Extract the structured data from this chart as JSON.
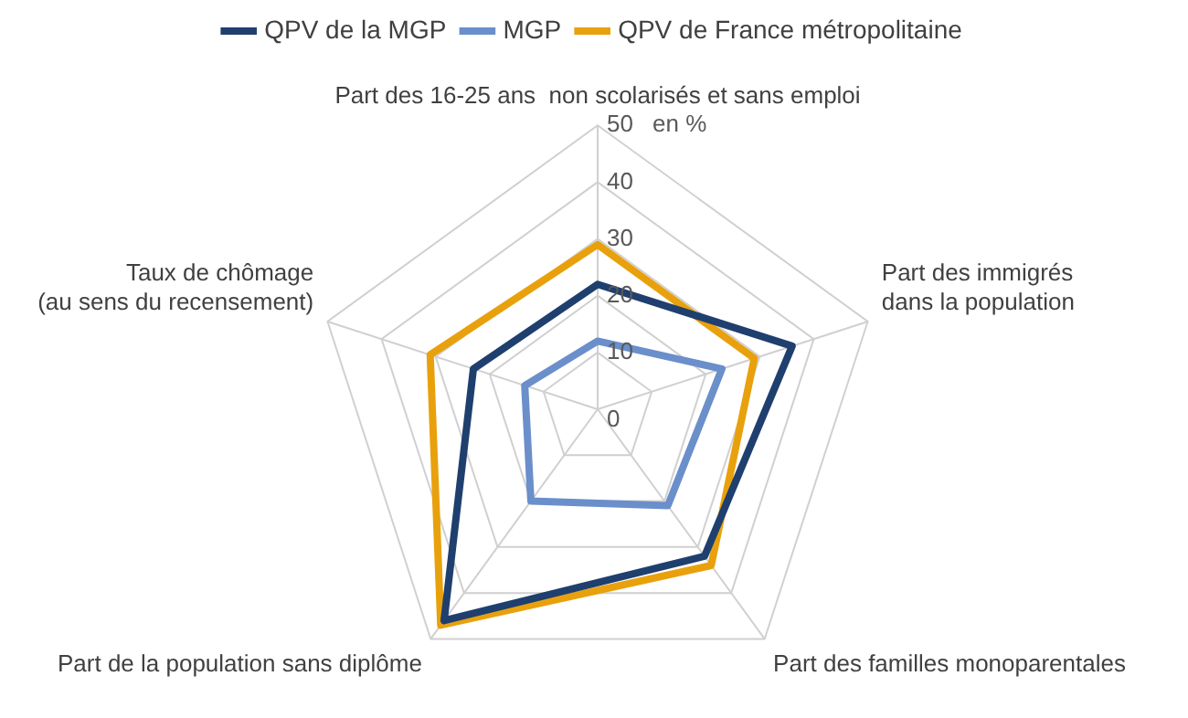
{
  "chart_data": {
    "type": "radar",
    "categories": [
      "Part des 16-25 ans  non scolarisés et sans emploi",
      "Part des immigrés\ndans la population",
      "Part des familles monoparentales",
      "Part de la population sans diplôme",
      "Taux de chômage\n(au sens du recensement)"
    ],
    "series": [
      {
        "name": "QPV de la MGP",
        "color": "#1f3f6e",
        "values": [
          22,
          36,
          32,
          46,
          23
        ]
      },
      {
        "name": "MGP",
        "color": "#6a8fca",
        "values": [
          12,
          23,
          21,
          20,
          13.5
        ]
      },
      {
        "name": "QPV de France métropolitaine",
        "color": "#e8a10c",
        "values": [
          29,
          29,
          34,
          47,
          31
        ]
      }
    ],
    "ylim": [
      0,
      50
    ],
    "yticks": [
      0,
      10,
      20,
      30,
      40,
      50
    ],
    "grid": true,
    "legend": "top",
    "marker": "none",
    "annotations": [
      "en %"
    ]
  }
}
